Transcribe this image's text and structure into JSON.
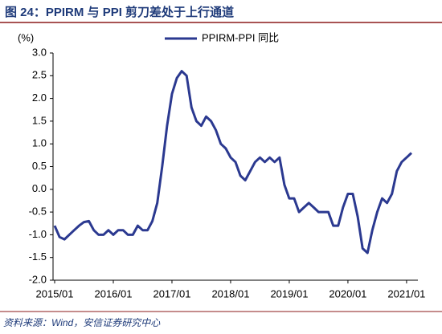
{
  "chart_data": {
    "type": "line",
    "title": "图 24：PPIRM 与 PPI 剪刀差处于上行通道",
    "source": "资料来源：Wind，安信证券研究中心",
    "y_label": "(%)",
    "categories": [
      "2015/01",
      null,
      null,
      null,
      null,
      null,
      null,
      null,
      null,
      null,
      null,
      null,
      "2016/01",
      null,
      null,
      null,
      null,
      null,
      null,
      null,
      null,
      null,
      null,
      null,
      "2017/01",
      null,
      null,
      null,
      null,
      null,
      null,
      null,
      null,
      null,
      null,
      null,
      "2018/01",
      null,
      null,
      null,
      null,
      null,
      null,
      null,
      null,
      null,
      null,
      null,
      "2019/01",
      null,
      null,
      null,
      null,
      null,
      null,
      null,
      null,
      null,
      null,
      null,
      "2020/01",
      null,
      null,
      null,
      null,
      null,
      null,
      null,
      null,
      null,
      null,
      null,
      "2021/01",
      null
    ],
    "series": [
      {
        "name": "PPIRM-PPI 同比",
        "color": "#2b3990",
        "values": [
          -0.8,
          -1.05,
          -1.1,
          -1.0,
          -0.9,
          -0.8,
          -0.72,
          -0.7,
          -0.9,
          -1.0,
          -1.0,
          -0.9,
          -1.0,
          -0.9,
          -0.9,
          -1.0,
          -1.0,
          -0.8,
          -0.9,
          -0.9,
          -0.7,
          -0.3,
          0.5,
          1.4,
          2.1,
          2.45,
          2.6,
          2.5,
          1.8,
          1.5,
          1.4,
          1.6,
          1.5,
          1.3,
          1.0,
          0.9,
          0.7,
          0.6,
          0.3,
          0.2,
          0.4,
          0.6,
          0.7,
          0.6,
          0.7,
          0.6,
          0.7,
          0.1,
          -0.2,
          -0.2,
          -0.5,
          -0.4,
          -0.3,
          -0.4,
          -0.5,
          -0.5,
          -0.5,
          -0.8,
          -0.8,
          -0.4,
          -0.1,
          -0.1,
          -0.6,
          -1.3,
          -1.4,
          -0.9,
          -0.5,
          -0.2,
          -0.3,
          -0.1,
          0.4,
          0.6,
          0.7,
          0.8
        ]
      }
    ],
    "ylim": [
      -2.0,
      3.0
    ],
    "yticks": [
      {
        "value": -2.0,
        "label": "-2.0"
      },
      -1.5,
      {
        "value": -1.0,
        "label": "-1.0"
      },
      -0.5,
      {
        "value": 0.0,
        "label": "0.0"
      },
      0.5,
      {
        "value": 1.0,
        "label": "1.0"
      },
      1.5,
      {
        "value": 2.0,
        "label": "2.0"
      },
      2.5,
      {
        "value": 3.0,
        "label": "3.0"
      }
    ],
    "legend": "top",
    "grid": false
  }
}
